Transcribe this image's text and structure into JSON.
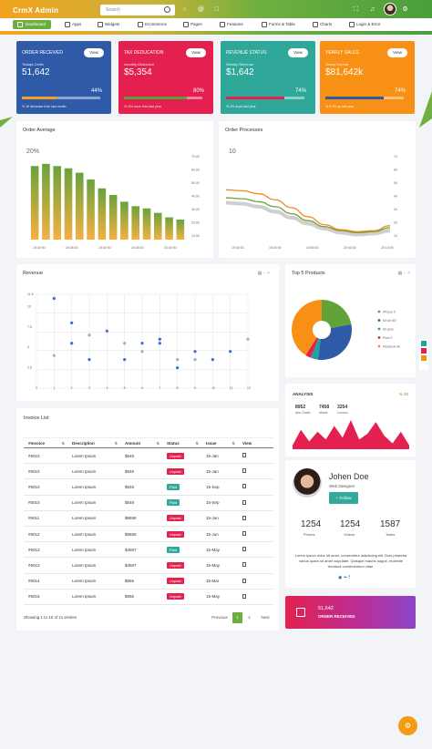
{
  "header": {
    "logo": "CrmX Admin",
    "search_placeholder": "Search",
    "icons": [
      "search-icon",
      "chat-icon",
      "at-icon",
      "clipboard-icon",
      "fullscreen-icon",
      "bell-icon",
      "gear-icon",
      "avatar"
    ]
  },
  "nav": {
    "items": [
      {
        "label": "Dashboard",
        "icon": "dashboard-icon",
        "active": true
      },
      {
        "label": "Apps",
        "icon": "apps-icon"
      },
      {
        "label": "Widgets",
        "icon": "widgets-icon"
      },
      {
        "label": "Ecommerce",
        "icon": "cart-icon"
      },
      {
        "label": "Pages",
        "icon": "pages-icon"
      },
      {
        "label": "Features",
        "icon": "features-icon"
      },
      {
        "label": "Forms & Table",
        "icon": "forms-icon"
      },
      {
        "label": "Charts",
        "icon": "charts-icon"
      },
      {
        "label": "Login & Error",
        "icon": "login-icon"
      }
    ]
  },
  "stats": [
    {
      "title": "ORDER RECEIVED",
      "view": "View",
      "sub": "Todays Order",
      "value": "51,642",
      "pct": "44%",
      "progress": 44,
      "foot": "% 15 decrease from last month",
      "color": "#2e5aa8",
      "bar": "#f3a024"
    },
    {
      "title": "TAX DEDUCATION",
      "view": "View",
      "sub": "monthly Deduction",
      "value": "$5,354",
      "pct": "80%",
      "progress": 80,
      "foot": "% 204 more than last year",
      "color": "#e3204f",
      "bar": "#5aa038"
    },
    {
      "title": "REVENUE STATUS",
      "view": "View",
      "sub": "Weekly Revenue",
      "value": "$1,642",
      "pct": "74%",
      "progress": 74,
      "foot": "% 2% down last year",
      "color": "#2fa89a",
      "bar": "#e3204f"
    },
    {
      "title": "YEARLY SALES",
      "view": "View",
      "sub": "Yearly Income",
      "value": "$81,642k",
      "pct": "74%",
      "progress": 74,
      "foot": "% 5.2% up last year",
      "color": "#f79015",
      "bar": "#2e5aa8"
    }
  ],
  "order_average": {
    "title": "Order Average",
    "label": "20%",
    "chart_data": {
      "type": "bar",
      "x_ticks": [
        "19:30:00",
        "19:35:00",
        "19:40:00",
        "19:45:00",
        "20:00:00"
      ],
      "values": [
        33,
        34,
        33,
        32,
        30,
        27,
        23,
        20,
        17,
        15,
        14,
        12,
        10,
        9
      ],
      "y_ticks": [
        "10.00",
        "20.00",
        "30.00",
        "40.00",
        "50.00",
        "60.00",
        "70.00"
      ],
      "ylim": [
        0,
        38
      ]
    }
  },
  "order_processes": {
    "title": "Order Processes",
    "label": "10",
    "chart_data": {
      "type": "line",
      "x_ticks": [
        "19:30:00",
        "19:40:00",
        "19:50:00",
        "20:00:00",
        "20:10:00"
      ],
      "y_ticks": [
        "10",
        "20",
        "30",
        "40",
        "50",
        "60",
        "70"
      ],
      "ylim": [
        0,
        85
      ],
      "series": [
        {
          "color": "#f28a1a",
          "values": [
            50,
            49,
            46,
            40,
            32,
            23,
            15,
            10,
            8,
            9,
            14
          ]
        },
        {
          "color": "#6aa33c",
          "values": [
            42,
            41,
            38,
            33,
            26,
            19,
            13,
            9,
            7,
            8,
            12
          ]
        },
        {
          "color": "#cfcfcf",
          "values": [
            37,
            36,
            33,
            28,
            22,
            16,
            11,
            7,
            5,
            6,
            9
          ]
        }
      ]
    }
  },
  "revenue": {
    "title": "Revenue",
    "chart_data": {
      "type": "scatter",
      "xlim": [
        0,
        12
      ],
      "ylim": [
        0,
        11.5
      ],
      "x_ticks": [
        "0",
        "1",
        "2",
        "3",
        "4",
        "5",
        "6",
        "7",
        "8",
        "9",
        "10",
        "11",
        "12"
      ],
      "y_ticks": [
        "2.5",
        "5",
        "7.5",
        "10",
        "11.5"
      ],
      "points": [
        [
          1,
          11
        ],
        [
          1,
          4
        ],
        [
          2,
          8
        ],
        [
          2,
          5.5
        ],
        [
          3,
          6.5
        ],
        [
          3,
          3.5
        ],
        [
          4,
          7
        ],
        [
          5,
          5.5
        ],
        [
          5,
          3.5
        ],
        [
          6,
          5.5
        ],
        [
          6,
          4.5
        ],
        [
          7,
          6
        ],
        [
          7,
          5.5
        ],
        [
          8,
          3.5
        ],
        [
          8,
          2.5
        ],
        [
          9,
          4.5
        ],
        [
          9,
          3.5
        ],
        [
          10,
          3.5
        ],
        [
          11,
          4.5
        ],
        [
          12,
          6
        ]
      ]
    }
  },
  "top_products": {
    "title": "Top 5 Products",
    "chart_data": {
      "type": "pie",
      "labels": [
        "iPhone X",
        "Mi tv4 55\"",
        "S9 plus",
        "Pixel 2",
        "Macbook Air"
      ],
      "colors": [
        "#62a339",
        "#2e5aa8",
        "#20a39b",
        "#e3204f",
        "#f79015"
      ],
      "values": [
        22,
        30,
        4,
        3,
        41
      ]
    }
  },
  "analysis": {
    "title": "ANALYSIS",
    "badge": "% 20",
    "stats": [
      {
        "value": "8952",
        "label": "Abu Dhabi"
      },
      {
        "value": "7458",
        "label": "Miami"
      },
      {
        "value": "3254",
        "label": "London"
      }
    ],
    "chart_data": {
      "type": "area",
      "color": "#e3204f",
      "values": [
        2,
        10,
        4,
        9,
        5,
        12,
        6,
        15,
        5,
        8,
        14,
        7,
        3,
        9,
        2
      ]
    }
  },
  "profile": {
    "name": "Johen Doe",
    "role": "Web Designer",
    "follow": "Follow",
    "photos": "1254",
    "photos_label": "Photos",
    "videos": "1254",
    "videos_label": "Videos",
    "tasks": "1587",
    "tasks_label": "Tasks",
    "bio": "Lorem ipsum dolor sit amet, consectetur adipiscing elit. Duis pharetra varius quam sit amet vulputate. Quisque mauris augue, molestie tincidunt condimentum vitae."
  },
  "order_card": {
    "value": "51,642",
    "label": "ORDER RECEIVED"
  },
  "invoice": {
    "title": "Invoice List",
    "columns": [
      "#Invoice",
      "Description",
      "Amount",
      "Status",
      "Issue",
      "View"
    ],
    "rows": [
      {
        "id": "#5010",
        "desc": "Lorem Ipsum",
        "amount": "$548",
        "status": "Unpaid",
        "issue": "15-Jan"
      },
      {
        "id": "#5010",
        "desc": "Lorem Ipsum",
        "amount": "$548",
        "status": "Unpaid",
        "issue": "15-Jan"
      },
      {
        "id": "#5010",
        "desc": "Lorem Ipsum",
        "amount": "$548",
        "status": "Paid",
        "issue": "15-Sep"
      },
      {
        "id": "#5010",
        "desc": "Lorem Ipsum",
        "amount": "$548",
        "status": "Paid",
        "issue": "15-Sep"
      },
      {
        "id": "#5011",
        "desc": "Lorem Ipsum",
        "amount": "$9658",
        "status": "Unpaid",
        "issue": "15-Jun"
      },
      {
        "id": "#5012",
        "desc": "Lorem Ipsum",
        "amount": "$9658",
        "status": "Unpaid",
        "issue": "15-Jun"
      },
      {
        "id": "#5013",
        "desc": "Lorem Ipsum",
        "amount": "$4587",
        "status": "Paid",
        "issue": "15-May"
      },
      {
        "id": "#5013",
        "desc": "Lorem Ipsum",
        "amount": "$4587",
        "status": "Unpaid",
        "issue": "15-May"
      },
      {
        "id": "#5014",
        "desc": "Lorem Ipsum",
        "amount": "$856",
        "status": "Unpaid",
        "issue": "15-Mar"
      },
      {
        "id": "#5015",
        "desc": "Lorem Ipsum",
        "amount": "$956",
        "status": "Unpaid",
        "issue": "15-May"
      }
    ],
    "showing": "Showing 1 to 10 of 11 entries",
    "pager": {
      "previous": "Previous",
      "page1": "1",
      "page2": "2",
      "next": "Next"
    }
  }
}
